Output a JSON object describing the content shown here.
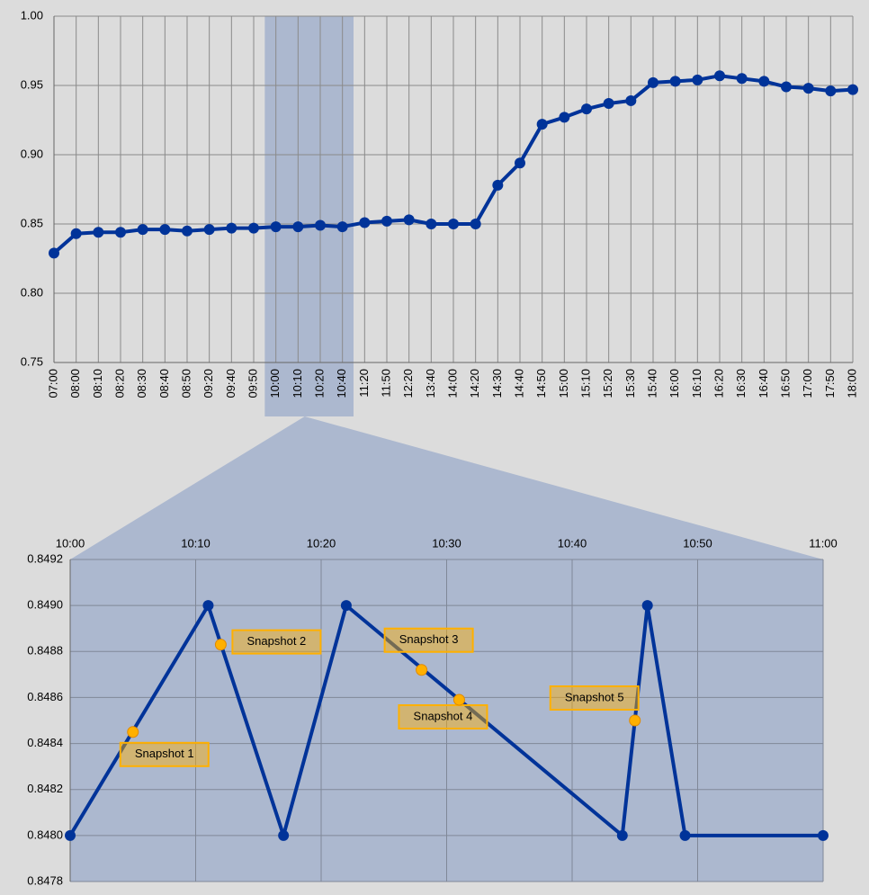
{
  "chart_data": [
    {
      "type": "line",
      "categories": [
        "07:00",
        "08:00",
        "08:10",
        "08:20",
        "08:30",
        "08:40",
        "08:50",
        "09:20",
        "09:40",
        "09:50",
        "10:00",
        "10:10",
        "10:20",
        "10:40",
        "11:20",
        "11:50",
        "12:20",
        "13:40",
        "14:00",
        "14:20",
        "14:30",
        "14:40",
        "14:50",
        "15:00",
        "15:10",
        "15:20",
        "15:30",
        "15:40",
        "16:00",
        "16:10",
        "16:20",
        "16:30",
        "16:40",
        "16:50",
        "17:00",
        "17:50",
        "18:00"
      ],
      "values": [
        0.829,
        0.843,
        0.844,
        0.844,
        0.846,
        0.846,
        0.845,
        0.846,
        0.847,
        0.847,
        0.848,
        0.848,
        0.849,
        0.848,
        0.851,
        0.852,
        0.853,
        0.85,
        0.85,
        0.85,
        0.878,
        0.894,
        0.922,
        0.927,
        0.933,
        0.937,
        0.939,
        0.952,
        0.953,
        0.954,
        0.957,
        0.955,
        0.953,
        0.949,
        0.948,
        0.946,
        0.947
      ],
      "color": "#003399",
      "ylim": [
        0.75,
        1.0
      ],
      "yticks": [
        0.75,
        {
          "value": 0.8,
          "label": "0.80"
        },
        0.85,
        {
          "value": 0.9,
          "label": "0.90"
        },
        0.95,
        {
          "value": 1.0,
          "label": "1.00"
        }
      ],
      "grid": true,
      "highlight": [
        "10:00",
        "10:40"
      ]
    },
    {
      "type": "line",
      "x": [
        600,
        611,
        617,
        622,
        644,
        646,
        649,
        660
      ],
      "values": [
        0.848,
        0.849,
        0.848,
        0.849,
        0.848,
        0.849,
        0.848,
        0.848
      ],
      "color": "#003399",
      "xlim": [
        600,
        660
      ],
      "xticks": [
        {
          "value": 600,
          "label": "10:00"
        },
        {
          "value": 610,
          "label": "10:10"
        },
        {
          "value": 620,
          "label": "10:20"
        },
        {
          "value": 630,
          "label": "10:30"
        },
        {
          "value": 640,
          "label": "10:40"
        },
        {
          "value": 650,
          "label": "10:50"
        },
        {
          "value": 660,
          "label": "11:00"
        }
      ],
      "ylim": [
        0.8478,
        0.8492
      ],
      "yticks": [
        0.8478,
        {
          "value": 0.848,
          "label": "0.8480"
        },
        0.8482,
        0.8484,
        0.8486,
        0.8488,
        {
          "value": 0.849,
          "label": "0.8490"
        },
        0.8492
      ],
      "grid": true,
      "snapshots": [
        {
          "label": "Snapshot 1",
          "x": 605,
          "y": 0.84845,
          "color": "#ffb000"
        },
        {
          "label": "Snapshot 2",
          "x": 612,
          "y": 0.84883,
          "color": "#ffb000"
        },
        {
          "label": "Snapshot 3",
          "x": 628,
          "y": 0.84872,
          "color": "#ffb000"
        },
        {
          "label": "Snapshot 4",
          "x": 631,
          "y": 0.84859,
          "color": "#ffb000"
        },
        {
          "label": "Snapshot 5",
          "x": 645,
          "y": 0.8485,
          "color": "#ffb000"
        }
      ]
    }
  ]
}
